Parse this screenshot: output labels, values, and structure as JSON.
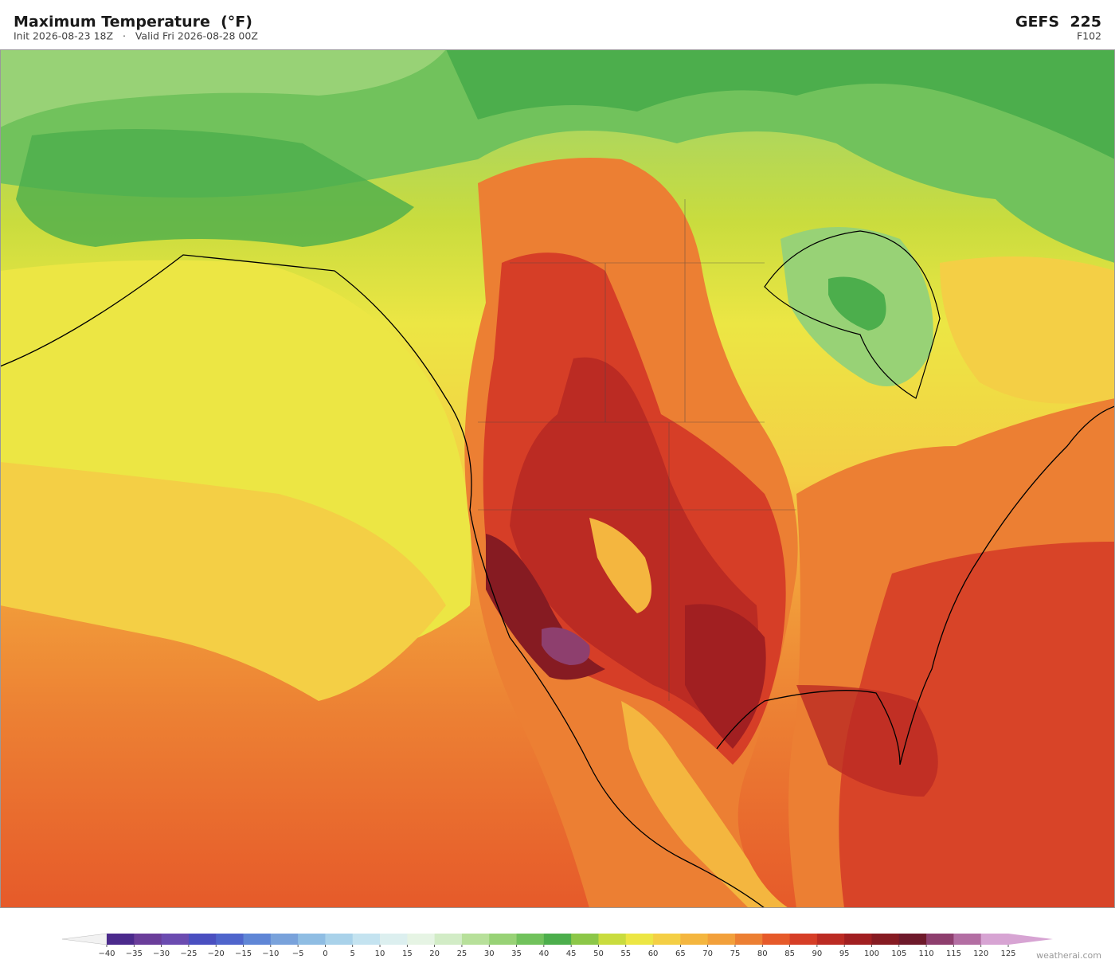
{
  "header": {
    "title": "Maximum Temperature  (°F)",
    "subtitle": "Init 2026-08-23 18Z   ·   Valid Fri 2026-08-28 00Z",
    "model": "GEFS  225",
    "forecast_hour": "F102"
  },
  "colorbar": {
    "ticks": [
      {
        "value": -40,
        "label": "−40"
      },
      {
        "value": -35,
        "label": "−35"
      },
      {
        "value": -30,
        "label": "−30"
      },
      {
        "value": -25,
        "label": "−25"
      },
      {
        "value": -20,
        "label": "−20"
      },
      {
        "value": -15,
        "label": "−15"
      },
      {
        "value": -10,
        "label": "−10"
      },
      {
        "value": -5,
        "label": "−5"
      },
      0,
      5,
      10,
      15,
      20,
      25,
      30,
      35,
      40,
      45,
      50,
      55,
      60,
      65,
      70,
      75,
      80,
      85,
      90,
      95,
      100,
      105,
      110,
      115,
      120,
      125
    ],
    "colors": [
      "#4b2a8c",
      "#6a3d9a",
      "#6b4bb0",
      "#4a4fc0",
      "#4f65cc",
      "#5f86d6",
      "#79a2db",
      "#8fbde3",
      "#a9d2ea",
      "#c4e3f0",
      "#dcefef",
      "#e6f4e4",
      "#d2ecc6",
      "#b7e09a",
      "#98d276",
      "#71c25c",
      "#4cae4c",
      "#8cc748",
      "#c9dc3e",
      "#ece644",
      "#f4cf45",
      "#f4b63f",
      "#f2a03b",
      "#ec7f33",
      "#e65a2a",
      "#d63e27",
      "#bb2b23",
      "#a11f21",
      "#861b22",
      "#6e1a2b",
      "#8e3f6e",
      "#b36ea3",
      "#d7a4d3"
    ],
    "under_color": "#f2f2f2",
    "over_color": "#d7a4d3"
  },
  "footer": {
    "credit": "weatherai.com"
  }
}
